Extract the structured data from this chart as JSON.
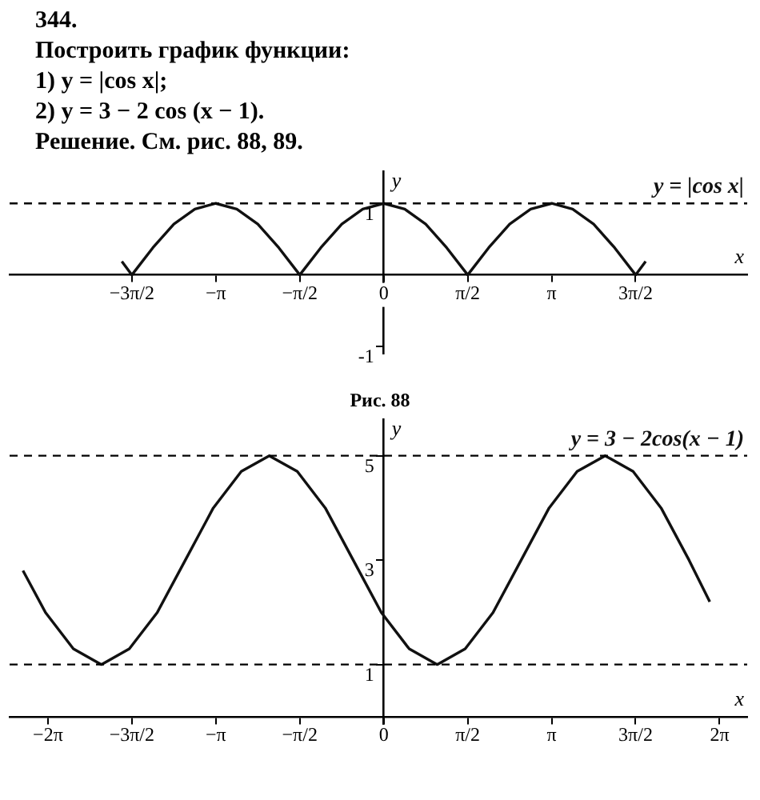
{
  "chart_data": [
    {
      "type": "other",
      "title": "344.",
      "subtitle": "Построить график функции:",
      "annotations": [
        "1) y = |cos x|;",
        "2) y = 3 − 2 cos (x − 1).",
        "Решение. См. рис. 88, 89."
      ]
    },
    {
      "type": "line",
      "xlabel": "x",
      "ylabel": "y",
      "annotations": [
        "Рис. 88"
      ],
      "grid": false,
      "legend": false,
      "marker": "none",
      "line_style": "solid",
      "xlim": [
        -7,
        6.8
      ],
      "ylim": [
        -1.1,
        1.45
      ],
      "xticks": [
        {
          "value": -4.712,
          "label": "−3π/2"
        },
        {
          "value": -3.142,
          "label": "−π"
        },
        {
          "value": -1.571,
          "label": "−π/2"
        },
        0,
        {
          "value": 1.571,
          "label": "π/2"
        },
        {
          "value": 3.142,
          "label": "π"
        },
        {
          "value": 4.712,
          "label": "3π/2"
        }
      ],
      "yticks": [
        -1,
        1
      ],
      "ref_lines": [
        {
          "axis": "y",
          "value": 1,
          "color": "#000000",
          "line_style": "dashed"
        }
      ],
      "series": [
        {
          "name": "y = |cos x|",
          "color": "#111111",
          "x": [
            -4.9,
            -4.712,
            -4.32,
            -3.927,
            -3.534,
            -3.142,
            -2.749,
            -2.356,
            -1.963,
            -1.571,
            -1.178,
            -0.785,
            -0.393,
            0,
            0.393,
            0.785,
            1.178,
            1.571,
            1.963,
            2.356,
            2.749,
            3.142,
            3.534,
            3.927,
            4.32,
            4.712,
            4.9
          ],
          "values": [
            0.19,
            0,
            0.38,
            0.71,
            0.92,
            1,
            0.92,
            0.71,
            0.38,
            0,
            0.38,
            0.71,
            0.92,
            1,
            0.92,
            0.71,
            0.38,
            0,
            0.38,
            0.71,
            0.92,
            1,
            0.92,
            0.71,
            0.38,
            0,
            0.19
          ]
        }
      ]
    },
    {
      "type": "line",
      "xlabel": "x",
      "ylabel": "y",
      "grid": false,
      "legend": false,
      "marker": "none",
      "line_style": "solid",
      "xlim": [
        -7,
        6.8
      ],
      "ylim": [
        -0.4,
        5.7
      ],
      "xticks": [
        {
          "value": -6.283,
          "label": "−2π"
        },
        {
          "value": -4.712,
          "label": "−3π/2"
        },
        {
          "value": -3.142,
          "label": "−π"
        },
        {
          "value": -1.571,
          "label": "−π/2"
        },
        0,
        {
          "value": 1.571,
          "label": "π/2"
        },
        {
          "value": 3.142,
          "label": "π"
        },
        {
          "value": 4.712,
          "label": "3π/2"
        },
        {
          "value": 6.283,
          "label": "2π"
        }
      ],
      "yticks": [
        1,
        3,
        5
      ],
      "ref_lines": [
        {
          "axis": "y",
          "value": 5,
          "color": "#000000",
          "line_style": "dashed"
        },
        {
          "axis": "y",
          "value": 1,
          "color": "#000000",
          "line_style": "dashed"
        }
      ],
      "series": [
        {
          "name": "y = 3 − 2cos(x − 1)",
          "color": "#111111",
          "x": [
            -6.75,
            -6.33,
            -5.807,
            -5.283,
            -4.76,
            -4.236,
            -3.712,
            -3.189,
            -2.665,
            -2.142,
            -1.618,
            -1.094,
            -0.571,
            -0.047,
            0.476,
            1,
            1.524,
            2.047,
            2.571,
            3.094,
            3.618,
            4.142,
            4.665,
            5.189,
            5.712,
            6.1
          ],
          "values": [
            2.8,
            2,
            1.3,
            1,
            1.3,
            2,
            3,
            4,
            4.7,
            5,
            4.7,
            4,
            3,
            2,
            1.3,
            1,
            1.3,
            2,
            3,
            4,
            4.7,
            5,
            4.7,
            4,
            3,
            2.2
          ]
        }
      ]
    }
  ]
}
